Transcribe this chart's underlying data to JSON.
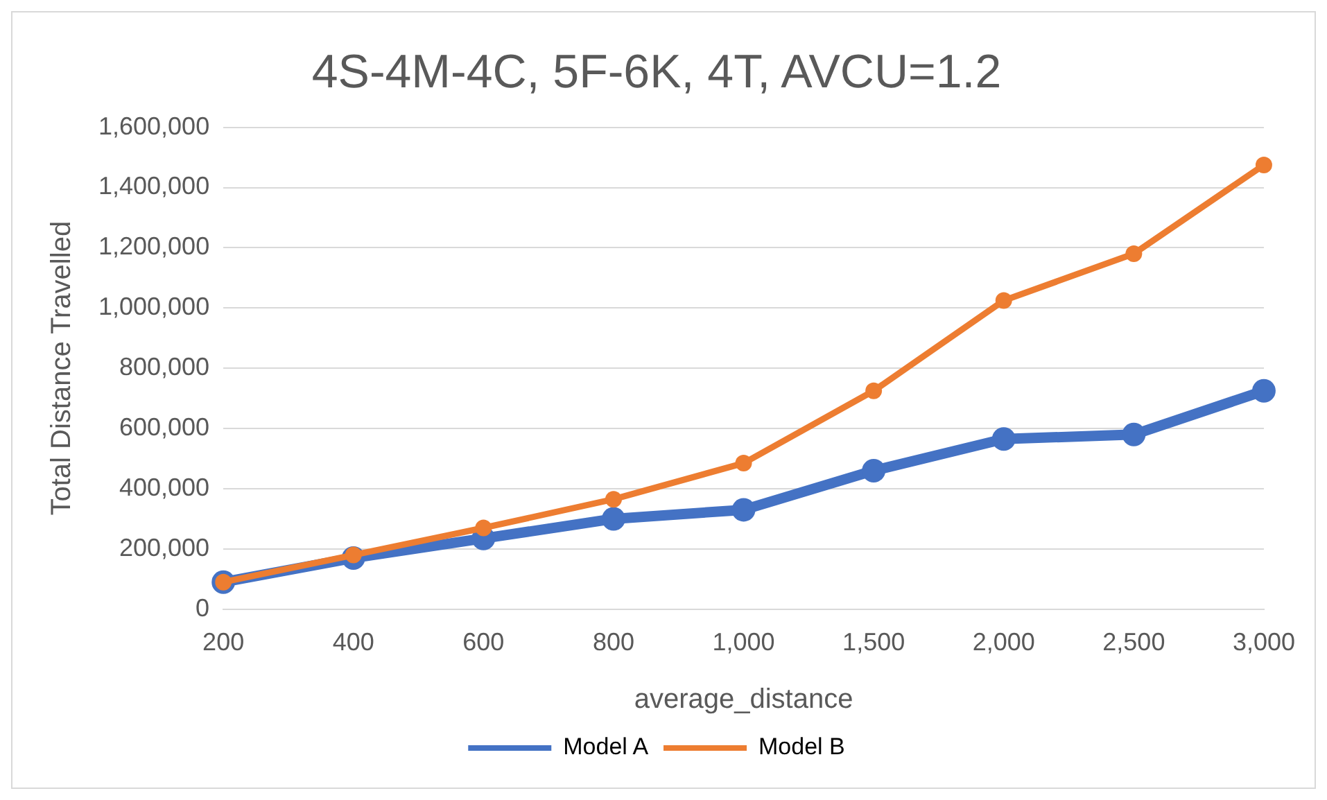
{
  "chart_data": {
    "type": "line",
    "title": "4S-4M-4C, 5F-6K, 4T, AVCU=1.2",
    "xlabel": "average_distance",
    "ylabel": "Total Distance Travelled",
    "categories": [
      "200",
      "400",
      "600",
      "800",
      "1,000",
      "1,500",
      "2,000",
      "2,500",
      "3,000"
    ],
    "series": [
      {
        "name": "Model A",
        "color": "#4472c4",
        "values": [
          90000,
          170000,
          235000,
          300000,
          330000,
          460000,
          565000,
          580000,
          725000
        ]
      },
      {
        "name": "Model B",
        "color": "#ed7d31",
        "values": [
          90000,
          180000,
          270000,
          365000,
          485000,
          725000,
          1025000,
          1180000,
          1475000
        ]
      }
    ],
    "ylim": [
      0,
      1600000
    ],
    "yticks": [
      0,
      {
        "value": 200000,
        "label": "200,000"
      },
      {
        "value": 400000,
        "label": "400,000"
      },
      {
        "value": 600000,
        "label": "600,000"
      },
      {
        "value": 800000,
        "label": "800,000"
      },
      {
        "value": 1000000,
        "label": "1,000,000"
      },
      {
        "value": 1200000,
        "label": "1,200,000"
      },
      {
        "value": 1400000,
        "label": "1,400,000"
      },
      {
        "value": 1600000,
        "label": "1,600,000"
      }
    ],
    "grid": "y",
    "legend": "bottom",
    "marker": "circle",
    "line_style": "solid"
  }
}
